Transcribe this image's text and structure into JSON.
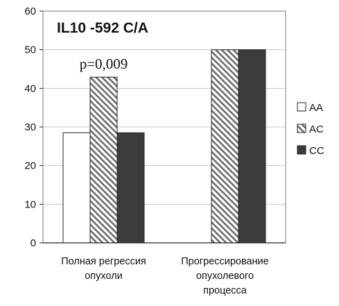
{
  "chart_data": {
    "type": "bar",
    "title": "IL10 -592 C/A",
    "categories": [
      "Полная регрессия опухоли",
      "Прогрессирование опухолевого процесса"
    ],
    "category_lines": [
      [
        "Полная регрессия",
        "опухоли"
      ],
      [
        "Прогрессирование",
        "опухолевого",
        "процесса"
      ]
    ],
    "series": [
      {
        "name": "AA",
        "values": [
          28.5,
          0
        ],
        "fill": "white",
        "color": "#ffffff"
      },
      {
        "name": "AC",
        "values": [
          42.9,
          50
        ],
        "fill": "hatch",
        "color": "#8a8a8a"
      },
      {
        "name": "CC",
        "values": [
          28.5,
          50
        ],
        "fill": "solid",
        "color": "#3c3c3c"
      }
    ],
    "yticks": [
      0,
      10,
      20,
      30,
      40,
      50,
      60
    ],
    "ylim": [
      0,
      60
    ],
    "xlabel": "",
    "ylabel": "",
    "annotations": [
      {
        "text": "p=0,009",
        "category": 0,
        "series": 1
      }
    ],
    "legend_position": "right",
    "grid": "horizontal"
  }
}
